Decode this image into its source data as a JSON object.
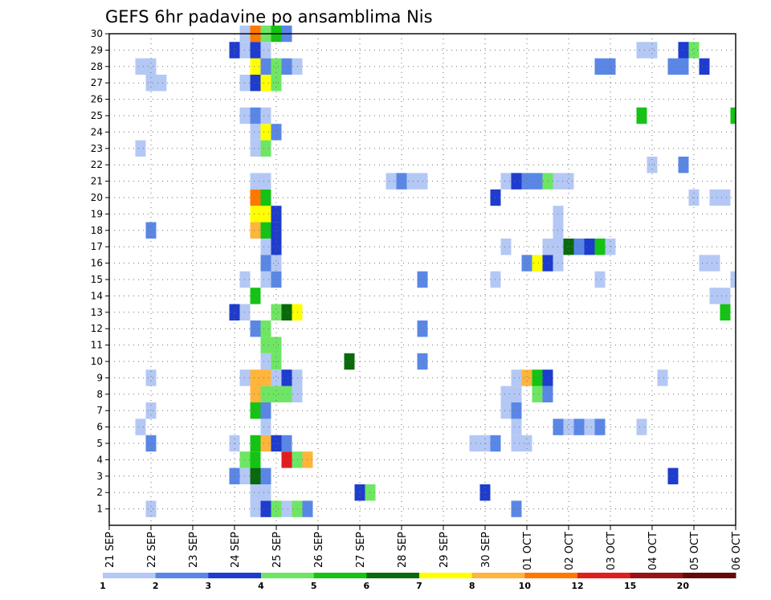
{
  "chart_data": {
    "type": "heatmap",
    "title": "GEFS 6hr padavine po ansamblima Nis",
    "xlabel": "",
    "ylabel": "",
    "x_tick_labels": [
      "21 SEP",
      "22 SEP",
      "23 SEP",
      "24 SEP",
      "25 SEP",
      "26 SEP",
      "27 SEP",
      "28 SEP",
      "29 SEP",
      "30 SEP",
      "01 OCT",
      "02 OCT",
      "03 OCT",
      "04 OCT",
      "05 OCT",
      "06 OCT"
    ],
    "xlim": [
      0,
      60
    ],
    "ylim": [
      0,
      30
    ],
    "y_tick_labels": [
      1,
      2,
      3,
      4,
      5,
      6,
      7,
      8,
      9,
      10,
      11,
      12,
      13,
      14,
      15,
      16,
      17,
      18,
      19,
      20,
      21,
      22,
      23,
      24,
      25,
      26,
      27,
      28,
      29,
      30
    ],
    "color_levels": [
      1,
      2,
      3,
      4,
      5,
      6,
      7,
      8,
      10,
      12,
      15,
      20
    ],
    "level_colors": [
      "#b4c8f5",
      "#5a87e6",
      "#1e3ccd",
      "#6ee664",
      "#14c314",
      "#0a690a",
      "#ffff00",
      "#ffb43c",
      "#ff7800",
      "#e11e1e",
      "#961414",
      "#640a0a"
    ],
    "grid": true,
    "cells": [
      {
        "member": 1,
        "step": 4,
        "level": 0
      },
      {
        "member": 1,
        "step": 14,
        "level": 0
      },
      {
        "member": 1,
        "step": 15,
        "level": 2
      },
      {
        "member": 1,
        "step": 16,
        "level": 3
      },
      {
        "member": 1,
        "step": 17,
        "level": 0
      },
      {
        "member": 1,
        "step": 18,
        "level": 3
      },
      {
        "member": 1,
        "step": 19,
        "level": 1
      },
      {
        "member": 1,
        "step": 39,
        "level": 1
      },
      {
        "member": 2,
        "step": 14,
        "level": 0
      },
      {
        "member": 2,
        "step": 15,
        "level": 0
      },
      {
        "member": 2,
        "step": 24,
        "level": 2
      },
      {
        "member": 2,
        "step": 25,
        "level": 3
      },
      {
        "member": 2,
        "step": 36,
        "level": 2
      },
      {
        "member": 3,
        "step": 12,
        "level": 1
      },
      {
        "member": 3,
        "step": 13,
        "level": 0
      },
      {
        "member": 3,
        "step": 14,
        "level": 5
      },
      {
        "member": 3,
        "step": 15,
        "level": 1
      },
      {
        "member": 3,
        "step": 54,
        "level": 2
      },
      {
        "member": 4,
        "step": 13,
        "level": 3
      },
      {
        "member": 4,
        "step": 14,
        "level": 4
      },
      {
        "member": 4,
        "step": 17,
        "level": 9
      },
      {
        "member": 4,
        "step": 18,
        "level": 3
      },
      {
        "member": 4,
        "step": 19,
        "level": 7
      },
      {
        "member": 5,
        "step": 4,
        "level": 1
      },
      {
        "member": 5,
        "step": 12,
        "level": 0
      },
      {
        "member": 5,
        "step": 14,
        "level": 4
      },
      {
        "member": 5,
        "step": 15,
        "level": 7
      },
      {
        "member": 5,
        "step": 16,
        "level": 2
      },
      {
        "member": 5,
        "step": 17,
        "level": 1
      },
      {
        "member": 5,
        "step": 35,
        "level": 0
      },
      {
        "member": 5,
        "step": 36,
        "level": 0
      },
      {
        "member": 5,
        "step": 37,
        "level": 1
      },
      {
        "member": 5,
        "step": 39,
        "level": 0
      },
      {
        "member": 5,
        "step": 40,
        "level": 0
      },
      {
        "member": 6,
        "step": 3,
        "level": 0
      },
      {
        "member": 6,
        "step": 15,
        "level": 0
      },
      {
        "member": 6,
        "step": 39,
        "level": 0
      },
      {
        "member": 6,
        "step": 43,
        "level": 1
      },
      {
        "member": 6,
        "step": 44,
        "level": 0
      },
      {
        "member": 6,
        "step": 45,
        "level": 1
      },
      {
        "member": 6,
        "step": 46,
        "level": 0
      },
      {
        "member": 6,
        "step": 47,
        "level": 1
      },
      {
        "member": 6,
        "step": 51,
        "level": 0
      },
      {
        "member": 7,
        "step": 4,
        "level": 0
      },
      {
        "member": 7,
        "step": 14,
        "level": 4
      },
      {
        "member": 7,
        "step": 15,
        "level": 1
      },
      {
        "member": 7,
        "step": 38,
        "level": 0
      },
      {
        "member": 7,
        "step": 39,
        "level": 1
      },
      {
        "member": 8,
        "step": 14,
        "level": 7
      },
      {
        "member": 8,
        "step": 15,
        "level": 3
      },
      {
        "member": 8,
        "step": 16,
        "level": 3
      },
      {
        "member": 8,
        "step": 17,
        "level": 3
      },
      {
        "member": 8,
        "step": 18,
        "level": 0
      },
      {
        "member": 8,
        "step": 38,
        "level": 0
      },
      {
        "member": 8,
        "step": 39,
        "level": 0
      },
      {
        "member": 8,
        "step": 41,
        "level": 3
      },
      {
        "member": 8,
        "step": 42,
        "level": 1
      },
      {
        "member": 9,
        "step": 4,
        "level": 0
      },
      {
        "member": 9,
        "step": 13,
        "level": 0
      },
      {
        "member": 9,
        "step": 14,
        "level": 7
      },
      {
        "member": 9,
        "step": 15,
        "level": 7
      },
      {
        "member": 9,
        "step": 16,
        "level": 0
      },
      {
        "member": 9,
        "step": 17,
        "level": 2
      },
      {
        "member": 9,
        "step": 18,
        "level": 0
      },
      {
        "member": 9,
        "step": 39,
        "level": 0
      },
      {
        "member": 9,
        "step": 40,
        "level": 7
      },
      {
        "member": 9,
        "step": 41,
        "level": 4
      },
      {
        "member": 9,
        "step": 42,
        "level": 2
      },
      {
        "member": 9,
        "step": 53,
        "level": 0
      },
      {
        "member": 10,
        "step": 15,
        "level": 0
      },
      {
        "member": 10,
        "step": 16,
        "level": 3
      },
      {
        "member": 10,
        "step": 23,
        "level": 5
      },
      {
        "member": 10,
        "step": 30,
        "level": 1
      },
      {
        "member": 11,
        "step": 15,
        "level": 3
      },
      {
        "member": 11,
        "step": 16,
        "level": 3
      },
      {
        "member": 12,
        "step": 14,
        "level": 1
      },
      {
        "member": 12,
        "step": 15,
        "level": 3
      },
      {
        "member": 12,
        "step": 30,
        "level": 1
      },
      {
        "member": 13,
        "step": 12,
        "level": 2
      },
      {
        "member": 13,
        "step": 13,
        "level": 0
      },
      {
        "member": 13,
        "step": 16,
        "level": 3
      },
      {
        "member": 13,
        "step": 17,
        "level": 5
      },
      {
        "member": 13,
        "step": 18,
        "level": 6
      },
      {
        "member": 13,
        "step": 59,
        "level": 4
      },
      {
        "member": 14,
        "step": 14,
        "level": 4
      },
      {
        "member": 14,
        "step": 58,
        "level": 0
      },
      {
        "member": 14,
        "step": 59,
        "level": 0
      },
      {
        "member": 15,
        "step": 13,
        "level": 0
      },
      {
        "member": 15,
        "step": 15,
        "level": 0
      },
      {
        "member": 15,
        "step": 16,
        "level": 1
      },
      {
        "member": 15,
        "step": 30,
        "level": 1
      },
      {
        "member": 15,
        "step": 37,
        "level": 0
      },
      {
        "member": 15,
        "step": 47,
        "level": 0
      },
      {
        "member": 15,
        "step": 60,
        "level": 0
      },
      {
        "member": 16,
        "step": 15,
        "level": 1
      },
      {
        "member": 16,
        "step": 16,
        "level": 0
      },
      {
        "member": 16,
        "step": 40,
        "level": 1
      },
      {
        "member": 16,
        "step": 41,
        "level": 6
      },
      {
        "member": 16,
        "step": 42,
        "level": 2
      },
      {
        "member": 16,
        "step": 43,
        "level": 0
      },
      {
        "member": 16,
        "step": 57,
        "level": 0
      },
      {
        "member": 16,
        "step": 58,
        "level": 0
      },
      {
        "member": 17,
        "step": 15,
        "level": 0
      },
      {
        "member": 17,
        "step": 16,
        "level": 2
      },
      {
        "member": 17,
        "step": 38,
        "level": 0
      },
      {
        "member": 17,
        "step": 42,
        "level": 0
      },
      {
        "member": 17,
        "step": 43,
        "level": 0
      },
      {
        "member": 17,
        "step": 44,
        "level": 5
      },
      {
        "member": 17,
        "step": 45,
        "level": 1
      },
      {
        "member": 17,
        "step": 46,
        "level": 2
      },
      {
        "member": 17,
        "step": 47,
        "level": 4
      },
      {
        "member": 17,
        "step": 48,
        "level": 0
      },
      {
        "member": 18,
        "step": 4,
        "level": 1
      },
      {
        "member": 18,
        "step": 14,
        "level": 7
      },
      {
        "member": 18,
        "step": 15,
        "level": 4
      },
      {
        "member": 18,
        "step": 16,
        "level": 2
      },
      {
        "member": 18,
        "step": 43,
        "level": 0
      },
      {
        "member": 19,
        "step": 14,
        "level": 6
      },
      {
        "member": 19,
        "step": 15,
        "level": 6
      },
      {
        "member": 19,
        "step": 16,
        "level": 2
      },
      {
        "member": 19,
        "step": 43,
        "level": 0
      },
      {
        "member": 20,
        "step": 14,
        "level": 8
      },
      {
        "member": 20,
        "step": 15,
        "level": 4
      },
      {
        "member": 20,
        "step": 37,
        "level": 2
      },
      {
        "member": 20,
        "step": 56,
        "level": 0
      },
      {
        "member": 20,
        "step": 58,
        "level": 0
      },
      {
        "member": 20,
        "step": 59,
        "level": 0
      },
      {
        "member": 21,
        "step": 14,
        "level": 0
      },
      {
        "member": 21,
        "step": 15,
        "level": 0
      },
      {
        "member": 21,
        "step": 27,
        "level": 0
      },
      {
        "member": 21,
        "step": 28,
        "level": 1
      },
      {
        "member": 21,
        "step": 29,
        "level": 0
      },
      {
        "member": 21,
        "step": 30,
        "level": 0
      },
      {
        "member": 21,
        "step": 38,
        "level": 0
      },
      {
        "member": 21,
        "step": 39,
        "level": 2
      },
      {
        "member": 21,
        "step": 40,
        "level": 1
      },
      {
        "member": 21,
        "step": 41,
        "level": 1
      },
      {
        "member": 21,
        "step": 42,
        "level": 3
      },
      {
        "member": 21,
        "step": 43,
        "level": 0
      },
      {
        "member": 21,
        "step": 44,
        "level": 0
      },
      {
        "member": 22,
        "step": 52,
        "level": 0
      },
      {
        "member": 22,
        "step": 55,
        "level": 1
      },
      {
        "member": 23,
        "step": 3,
        "level": 0
      },
      {
        "member": 23,
        "step": 14,
        "level": 0
      },
      {
        "member": 23,
        "step": 15,
        "level": 3
      },
      {
        "member": 24,
        "step": 14,
        "level": 0
      },
      {
        "member": 24,
        "step": 15,
        "level": 6
      },
      {
        "member": 24,
        "step": 16,
        "level": 1
      },
      {
        "member": 25,
        "step": 13,
        "level": 0
      },
      {
        "member": 25,
        "step": 14,
        "level": 1
      },
      {
        "member": 25,
        "step": 15,
        "level": 0
      },
      {
        "member": 25,
        "step": 51,
        "level": 4
      },
      {
        "member": 25,
        "step": 60,
        "level": 4
      },
      {
        "member": 27,
        "step": 4,
        "level": 0
      },
      {
        "member": 27,
        "step": 5,
        "level": 0
      },
      {
        "member": 27,
        "step": 13,
        "level": 0
      },
      {
        "member": 27,
        "step": 14,
        "level": 2
      },
      {
        "member": 27,
        "step": 15,
        "level": 6
      },
      {
        "member": 27,
        "step": 16,
        "level": 3
      },
      {
        "member": 28,
        "step": 3,
        "level": 0
      },
      {
        "member": 28,
        "step": 4,
        "level": 0
      },
      {
        "member": 28,
        "step": 14,
        "level": 6
      },
      {
        "member": 28,
        "step": 15,
        "level": 1
      },
      {
        "member": 28,
        "step": 16,
        "level": 3
      },
      {
        "member": 28,
        "step": 17,
        "level": 1
      },
      {
        "member": 28,
        "step": 18,
        "level": 0
      },
      {
        "member": 28,
        "step": 47,
        "level": 1
      },
      {
        "member": 28,
        "step": 48,
        "level": 1
      },
      {
        "member": 28,
        "step": 54,
        "level": 1
      },
      {
        "member": 28,
        "step": 55,
        "level": 1
      },
      {
        "member": 28,
        "step": 57,
        "level": 2
      },
      {
        "member": 29,
        "step": 12,
        "level": 2
      },
      {
        "member": 29,
        "step": 13,
        "level": 0
      },
      {
        "member": 29,
        "step": 14,
        "level": 2
      },
      {
        "member": 29,
        "step": 15,
        "level": 0
      },
      {
        "member": 29,
        "step": 51,
        "level": 0
      },
      {
        "member": 29,
        "step": 52,
        "level": 0
      },
      {
        "member": 29,
        "step": 55,
        "level": 2
      },
      {
        "member": 29,
        "step": 56,
        "level": 3
      },
      {
        "member": 30,
        "step": 13,
        "level": 0
      },
      {
        "member": 30,
        "step": 14,
        "level": 8
      },
      {
        "member": 30,
        "step": 15,
        "level": 3
      },
      {
        "member": 30,
        "step": 16,
        "level": 4
      },
      {
        "member": 30,
        "step": 17,
        "level": 1
      }
    ]
  }
}
